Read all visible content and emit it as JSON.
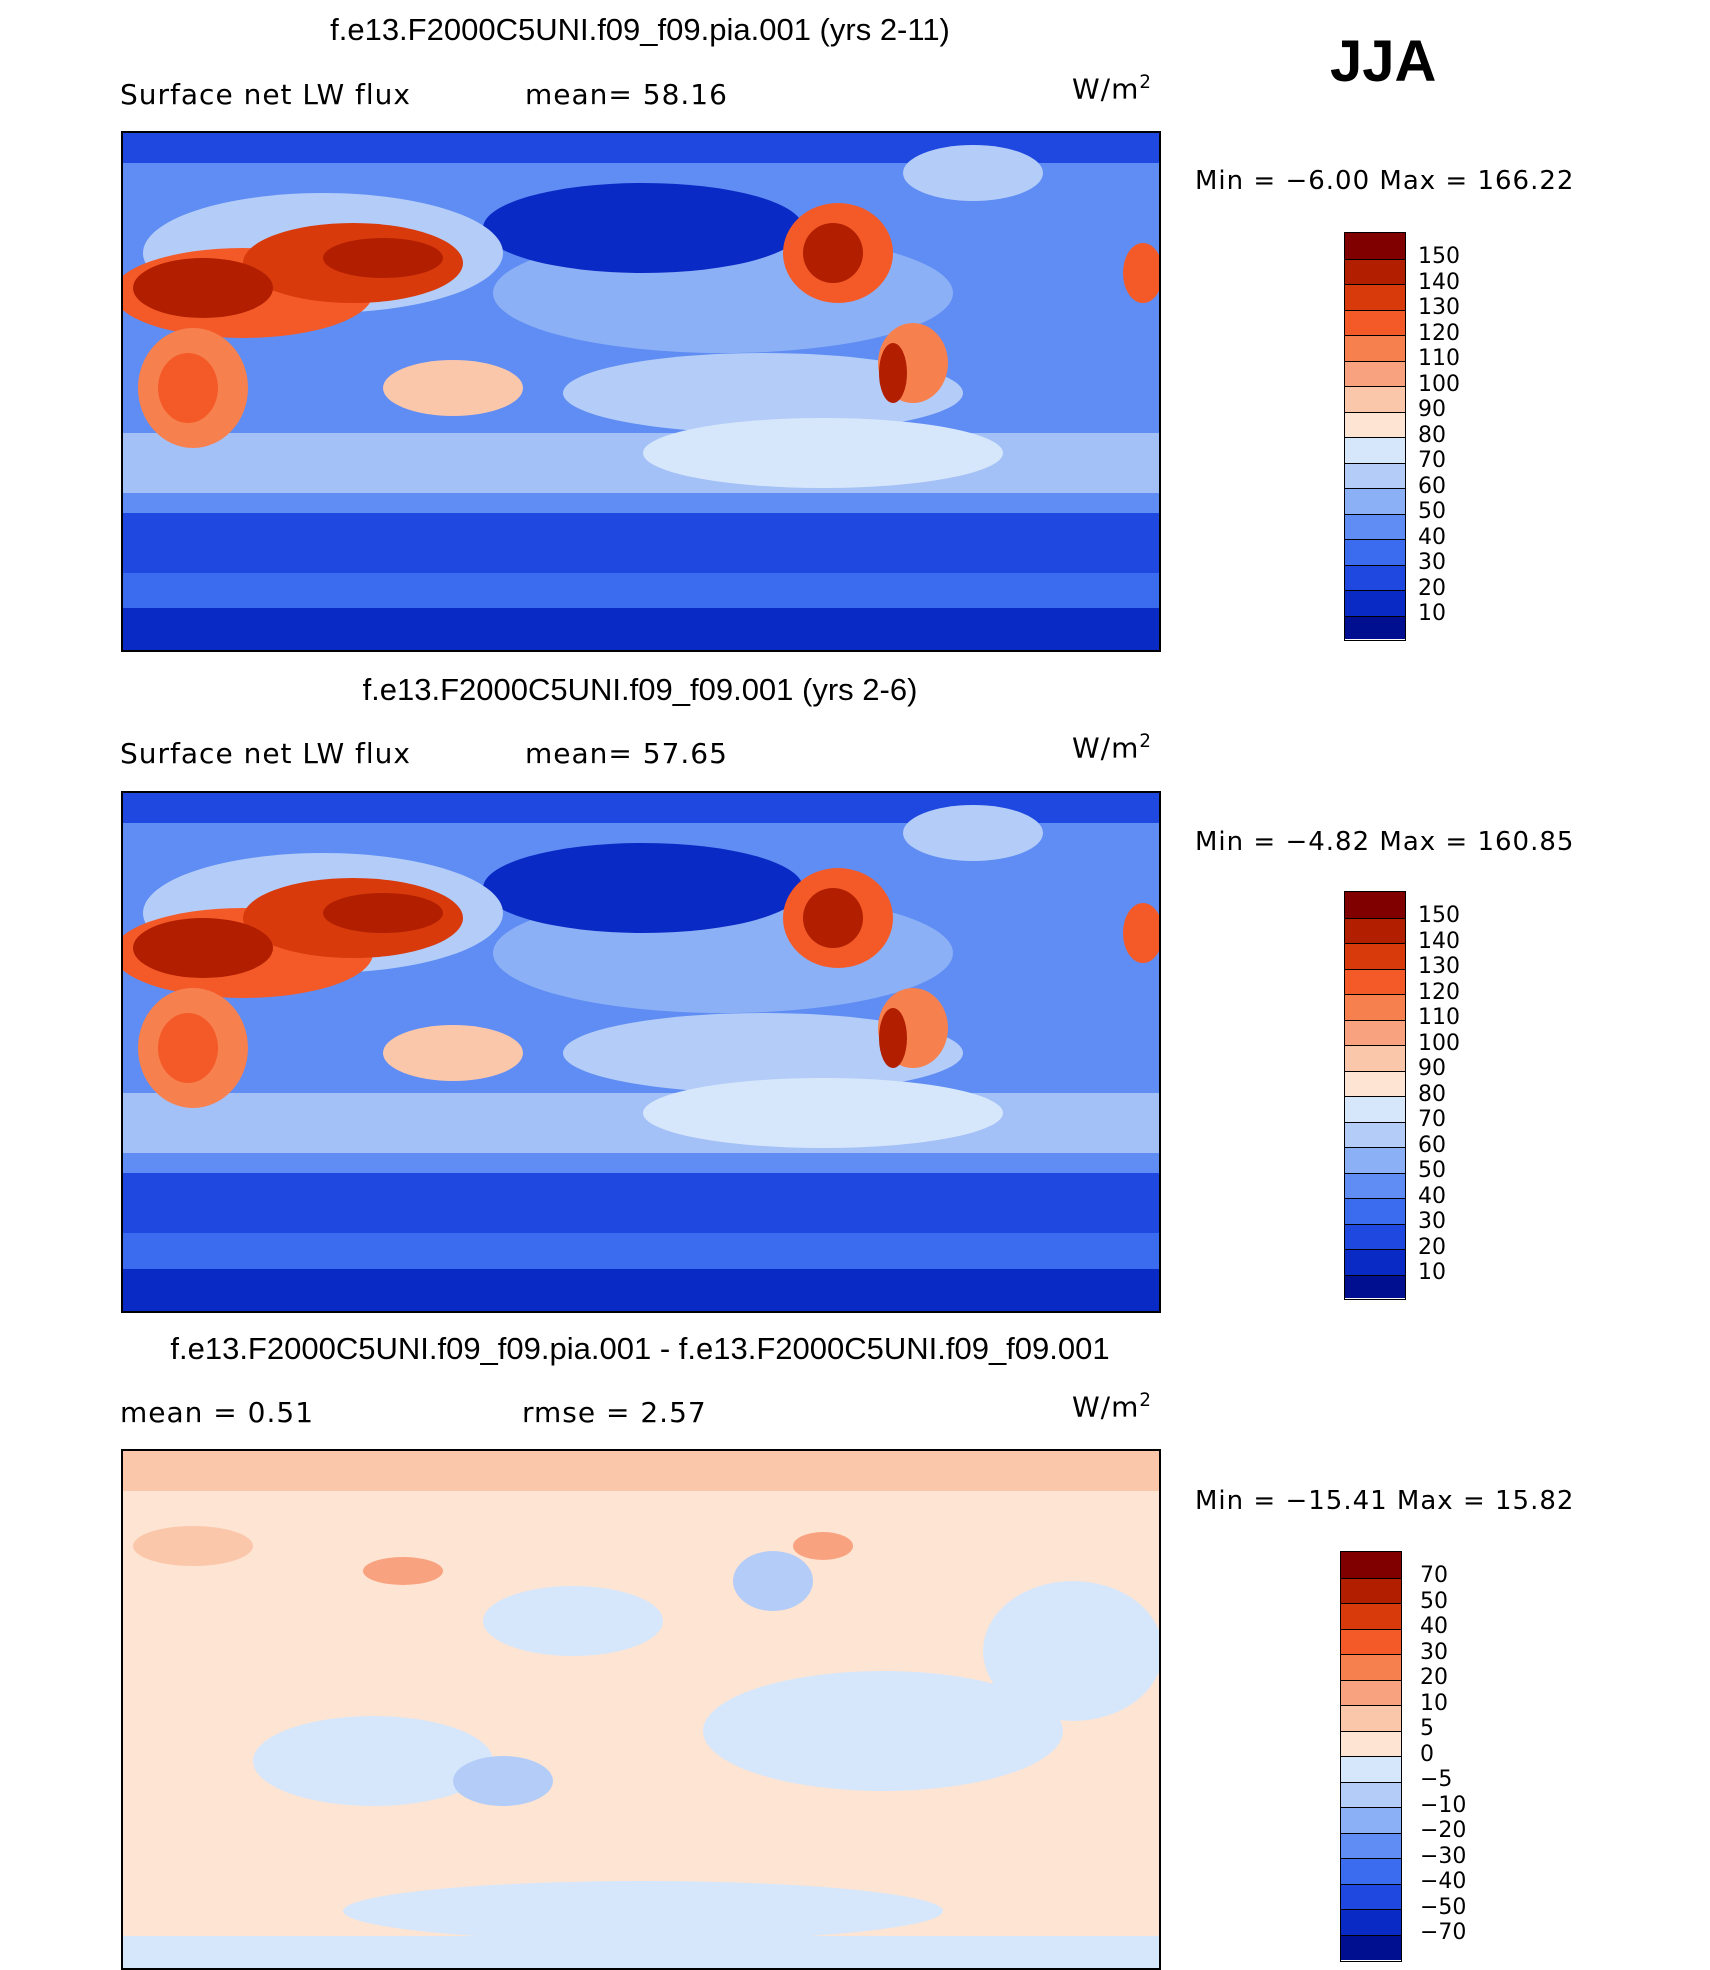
{
  "season": "JJA",
  "panels": [
    {
      "id": "top",
      "title": "f.e13.F2000C5UNI.f09_f09.pia.001 (yrs 2-11)",
      "left_text": "Surface net LW flux",
      "mid_text": "mean=  58.16",
      "units_base": "W/m",
      "units_exp": "2",
      "minmax": "Min =  −6.00 Max = 166.22",
      "colorbar": {
        "labels": [
          "150",
          "140",
          "130",
          "120",
          "110",
          "100",
          "90",
          "80",
          "70",
          "60",
          "50",
          "40",
          "30",
          "20",
          "10"
        ],
        "colors": [
          "#800000",
          "#b11f00",
          "#d93a0c",
          "#f45a28",
          "#f7804f",
          "#f9a27f",
          "#fbc7ab",
          "#fee4d2",
          "#d7e7fb",
          "#b4cdf8",
          "#8cb0f6",
          "#5f8df3",
          "#3b6bee",
          "#1e48e0",
          "#0a2ac6",
          "#000f8f"
        ]
      }
    },
    {
      "id": "middle",
      "title": "f.e13.F2000C5UNI.f09_f09.001 (yrs 2-6)",
      "left_text": "Surface net LW flux",
      "mid_text": "mean=  57.65",
      "units_base": "W/m",
      "units_exp": "2",
      "minmax": "Min =  −4.82 Max = 160.85",
      "colorbar": {
        "labels": [
          "150",
          "140",
          "130",
          "120",
          "110",
          "100",
          "90",
          "80",
          "70",
          "60",
          "50",
          "40",
          "30",
          "20",
          "10"
        ],
        "colors": [
          "#800000",
          "#b11f00",
          "#d93a0c",
          "#f45a28",
          "#f7804f",
          "#f9a27f",
          "#fbc7ab",
          "#fee4d2",
          "#d7e7fb",
          "#b4cdf8",
          "#8cb0f6",
          "#5f8df3",
          "#3b6bee",
          "#1e48e0",
          "#0a2ac6",
          "#000f8f"
        ]
      }
    },
    {
      "id": "bottom",
      "title": "f.e13.F2000C5UNI.f09_f09.pia.001 - f.e13.F2000C5UNI.f09_f09.001",
      "left_text": "mean =   0.51",
      "mid_text": "rmse =   2.57",
      "units_base": "W/m",
      "units_exp": "2",
      "minmax": "Min = −15.41 Max =  15.82",
      "colorbar": {
        "labels": [
          "70",
          "50",
          "40",
          "30",
          "20",
          "10",
          "5",
          "0",
          "−5",
          "−10",
          "−20",
          "−30",
          "−40",
          "−50",
          "−70"
        ],
        "colors": [
          "#800000",
          "#b11f00",
          "#d93a0c",
          "#f45a28",
          "#f7804f",
          "#f9a27f",
          "#fbc7ab",
          "#fee4d2",
          "#d7e7fb",
          "#b4cdf8",
          "#8cb0f6",
          "#5f8df3",
          "#3b6bee",
          "#1e48e0",
          "#0a2ac6",
          "#000f8f"
        ]
      }
    }
  ]
}
